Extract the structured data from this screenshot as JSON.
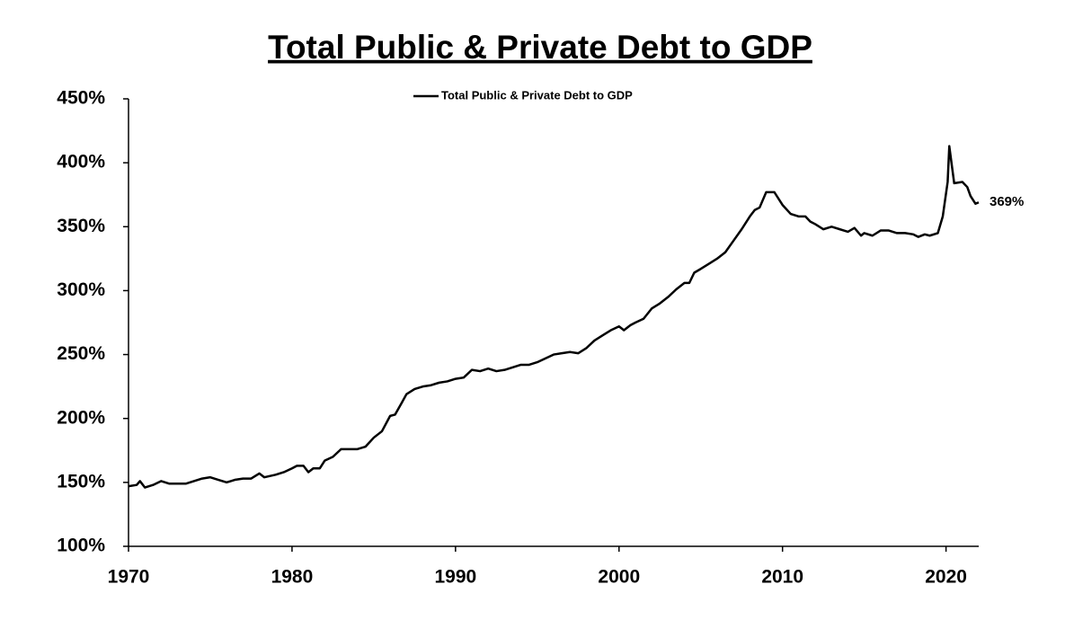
{
  "chart_data": {
    "type": "line",
    "title": "Total Public & Private Debt to GDP",
    "x": [
      1970,
      1970.5,
      1970.7,
      1971,
      1971.5,
      1972,
      1972.5,
      1973,
      1973.5,
      1974,
      1974.5,
      1975,
      1975.5,
      1976,
      1976.5,
      1977,
      1977.5,
      1978,
      1978.3,
      1979,
      1979.5,
      1980,
      1980.3,
      1980.7,
      1981,
      1981.3,
      1981.7,
      1982,
      1982.5,
      1983,
      1983.5,
      1984,
      1984.5,
      1985,
      1985.5,
      1986,
      1986.3,
      1986.7,
      1987,
      1987.5,
      1988,
      1988.5,
      1989,
      1989.5,
      1990,
      1990.5,
      1991,
      1991.5,
      1992,
      1992.5,
      1993,
      1993.5,
      1994,
      1994.5,
      1995,
      1995.5,
      1996,
      1996.5,
      1997,
      1997.5,
      1998,
      1998.5,
      1999,
      1999.5,
      2000,
      2000.3,
      2000.7,
      2001,
      2001.5,
      2002,
      2002.5,
      2003,
      2003.5,
      2004,
      2004.3,
      2004.6,
      2005,
      2005.5,
      2006,
      2006.5,
      2007,
      2007.5,
      2008,
      2008.3,
      2008.6,
      2009,
      2009.5,
      2010,
      2010.5,
      2011,
      2011.4,
      2011.7,
      2012,
      2012.5,
      2013,
      2013.5,
      2014,
      2014.4,
      2014.8,
      2015,
      2015.5,
      2016,
      2016.5,
      2017,
      2017.5,
      2018,
      2018.3,
      2018.7,
      2019,
      2019.5,
      2019.8,
      2020.1,
      2020.2,
      2020.5,
      2021,
      2021.3,
      2021.5,
      2021.8,
      2022
    ],
    "series": [
      {
        "name": "Total Public & Private Debt to GDP",
        "color": "#000000",
        "values": [
          147,
          148,
          151,
          146,
          148,
          151,
          149,
          149,
          149,
          151,
          153,
          154,
          152,
          150,
          152,
          153,
          153,
          157,
          154,
          156,
          158,
          161,
          163,
          163,
          158,
          161,
          161,
          167,
          170,
          176,
          176,
          176,
          178,
          185,
          190,
          202,
          203,
          212,
          219,
          223,
          225,
          226,
          228,
          229,
          231,
          232,
          238,
          237,
          239,
          237,
          238,
          240,
          242,
          242,
          244,
          247,
          250,
          251,
          252,
          251,
          255,
          261,
          265,
          269,
          272,
          269,
          273,
          275,
          278,
          286,
          290,
          295,
          301,
          306,
          306,
          314,
          317,
          321,
          325,
          330,
          339,
          348,
          358,
          363,
          365,
          377,
          377,
          367,
          360,
          358,
          358,
          354,
          352,
          348,
          350,
          348,
          346,
          349,
          343,
          345,
          343,
          347,
          347,
          345,
          345,
          344,
          342,
          344,
          343,
          345,
          358,
          385,
          413,
          384,
          385,
          381,
          374,
          368,
          369
        ]
      }
    ],
    "annotation": {
      "text": "369%",
      "x": 2022,
      "y": 369
    },
    "xlim": [
      1970,
      2022
    ],
    "xticks": [
      1970,
      1980,
      1990,
      2000,
      2010,
      2020
    ],
    "ylim": [
      100,
      450
    ],
    "yticks": [
      {
        "value": 100,
        "label": "100%"
      },
      {
        "value": 150,
        "label": "150%"
      },
      {
        "value": 200,
        "label": "200%"
      },
      {
        "value": 250,
        "label": "250%"
      },
      {
        "value": 300,
        "label": "300%"
      },
      {
        "value": 350,
        "label": "350%"
      },
      {
        "value": 400,
        "label": "400%"
      },
      {
        "value": 450,
        "label": "450%"
      }
    ],
    "grid": false,
    "legend": "top"
  }
}
